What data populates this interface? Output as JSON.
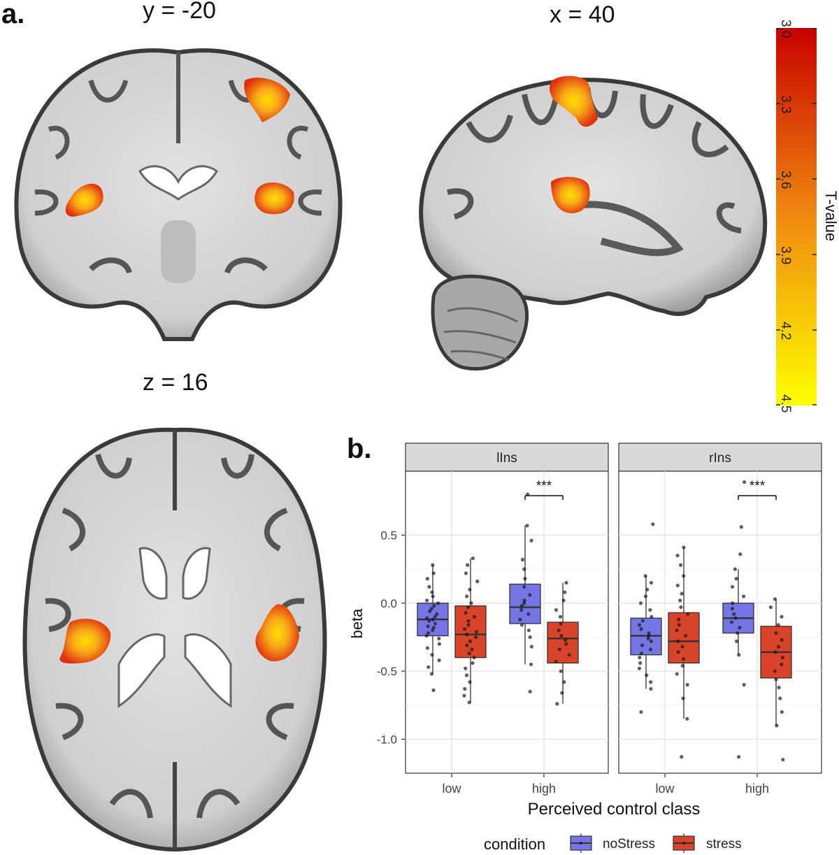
{
  "panel_a": {
    "label": "a.",
    "slices": [
      {
        "label": "y = -20",
        "view": "coronal"
      },
      {
        "label": "x = 40",
        "view": "sagittal"
      },
      {
        "label": "z = 16",
        "view": "axial"
      }
    ],
    "colorbar": {
      "title": "T-value",
      "ticks": [
        "3.0",
        "3.3",
        "3.6",
        "3.9",
        "4.2",
        "4.5"
      ],
      "colors": {
        "low": "#c80000",
        "mid": "#f08a10",
        "high": "#ffff00"
      }
    },
    "colors": {
      "blob_outer": "#e03010",
      "blob_mid": "#f08a10",
      "blob_core": "#ffe000"
    }
  },
  "panel_b": {
    "label": "b.",
    "chart_data": {
      "type": "boxplot",
      "facets": [
        "lIns",
        "rIns"
      ],
      "categories": [
        "low",
        "high"
      ],
      "xlabel": "Perceived control class",
      "ylabel": "beta",
      "yticks": [
        0.5,
        0.0,
        -0.5,
        -1.0
      ],
      "ytick_labels": [
        "0.5",
        "0.0",
        "-0.5",
        "-1.0"
      ],
      "ylim": [
        -1.25,
        0.97
      ],
      "legend": {
        "title": "condition",
        "position": "bottom",
        "entries": [
          "noStress",
          "stress"
        ]
      },
      "series_colors": {
        "noStress": "#7575e6",
        "stress": "#d9432a"
      },
      "significance": [
        {
          "facet": "lIns",
          "category": "high",
          "label": "***",
          "y": 0.79
        },
        {
          "facet": "rIns",
          "category": "high",
          "label": "***",
          "y": 0.79
        }
      ],
      "boxes": [
        {
          "facet": "lIns",
          "category": "low",
          "series": "noStress",
          "q1": -0.24,
          "median": -0.12,
          "q3": 0.0,
          "whisker_low": -0.52,
          "whisker_high": 0.28
        },
        {
          "facet": "lIns",
          "category": "low",
          "series": "stress",
          "q1": -0.4,
          "median": -0.23,
          "q3": -0.02,
          "whisker_low": -0.73,
          "whisker_high": 0.33
        },
        {
          "facet": "lIns",
          "category": "high",
          "series": "noStress",
          "q1": -0.15,
          "median": -0.03,
          "q3": 0.14,
          "whisker_low": -0.45,
          "whisker_high": 0.57
        },
        {
          "facet": "lIns",
          "category": "high",
          "series": "stress",
          "q1": -0.44,
          "median": -0.26,
          "q3": -0.14,
          "whisker_low": -0.74,
          "whisker_high": 0.15
        },
        {
          "facet": "rIns",
          "category": "low",
          "series": "noStress",
          "q1": -0.38,
          "median": -0.24,
          "q3": -0.11,
          "whisker_low": -0.63,
          "whisker_high": 0.2
        },
        {
          "facet": "rIns",
          "category": "low",
          "series": "stress",
          "q1": -0.44,
          "median": -0.28,
          "q3": -0.07,
          "whisker_low": -0.85,
          "whisker_high": 0.41
        },
        {
          "facet": "rIns",
          "category": "high",
          "series": "noStress",
          "q1": -0.22,
          "median": -0.11,
          "q3": 0.0,
          "whisker_low": -0.38,
          "whisker_high": 0.25
        },
        {
          "facet": "rIns",
          "category": "high",
          "series": "stress",
          "q1": -0.55,
          "median": -0.36,
          "q3": -0.17,
          "whisker_low": -0.9,
          "whisker_high": 0.03
        }
      ],
      "points": [
        {
          "facet": "lIns",
          "category": "low",
          "series": "noStress",
          "values": [
            0.28,
            0.22,
            0.18,
            0.12,
            0.08,
            0.05,
            0.02,
            0.0,
            -0.02,
            -0.04,
            -0.06,
            -0.08,
            -0.1,
            -0.11,
            -0.12,
            -0.13,
            -0.15,
            -0.17,
            -0.18,
            -0.2,
            -0.22,
            -0.24,
            -0.26,
            -0.3,
            -0.33,
            -0.38,
            -0.42,
            -0.47,
            -0.52,
            -0.64
          ]
        },
        {
          "facet": "lIns",
          "category": "low",
          "series": "stress",
          "values": [
            0.33,
            0.28,
            0.22,
            0.16,
            0.1,
            0.05,
            0.0,
            -0.03,
            -0.07,
            -0.1,
            -0.13,
            -0.16,
            -0.19,
            -0.21,
            -0.23,
            -0.25,
            -0.28,
            -0.31,
            -0.34,
            -0.37,
            -0.4,
            -0.44,
            -0.48,
            -0.53,
            -0.58,
            -0.63,
            -0.68,
            -0.73
          ]
        },
        {
          "facet": "lIns",
          "category": "high",
          "series": "noStress",
          "values": [
            0.8,
            0.57,
            0.46,
            0.32,
            0.25,
            0.18,
            0.12,
            0.06,
            0.02,
            0.0,
            -0.02,
            -0.05,
            -0.08,
            -0.12,
            -0.16,
            -0.2,
            -0.25,
            -0.32,
            -0.45,
            -0.65
          ]
        },
        {
          "facet": "lIns",
          "category": "high",
          "series": "stress",
          "values": [
            0.15,
            0.08,
            0.02,
            -0.05,
            -0.1,
            -0.15,
            -0.2,
            -0.24,
            -0.27,
            -0.3,
            -0.34,
            -0.38,
            -0.43,
            -0.5,
            -0.58,
            -0.66,
            -0.74
          ]
        },
        {
          "facet": "rIns",
          "category": "low",
          "series": "noStress",
          "values": [
            0.58,
            0.2,
            0.15,
            0.1,
            0.05,
            0.0,
            -0.05,
            -0.1,
            -0.13,
            -0.16,
            -0.19,
            -0.22,
            -0.24,
            -0.26,
            -0.28,
            -0.31,
            -0.34,
            -0.37,
            -0.4,
            -0.44,
            -0.48,
            -0.53,
            -0.58,
            -0.63,
            -0.8
          ]
        },
        {
          "facet": "rIns",
          "category": "low",
          "series": "stress",
          "values": [
            0.41,
            0.35,
            0.28,
            0.2,
            0.13,
            0.07,
            0.02,
            -0.03,
            -0.08,
            -0.12,
            -0.16,
            -0.2,
            -0.24,
            -0.28,
            -0.32,
            -0.36,
            -0.41,
            -0.46,
            -0.52,
            -0.6,
            -0.7,
            -0.85,
            -1.13
          ]
        },
        {
          "facet": "rIns",
          "category": "high",
          "series": "noStress",
          "values": [
            0.89,
            0.56,
            0.36,
            0.25,
            0.18,
            0.12,
            0.05,
            0.0,
            -0.04,
            -0.08,
            -0.11,
            -0.14,
            -0.18,
            -0.22,
            -0.28,
            -0.38,
            -0.6,
            -1.13
          ]
        },
        {
          "facet": "rIns",
          "category": "high",
          "series": "stress",
          "values": [
            0.03,
            -0.03,
            -0.1,
            -0.16,
            -0.22,
            -0.27,
            -0.32,
            -0.36,
            -0.4,
            -0.45,
            -0.5,
            -0.56,
            -0.62,
            -0.7,
            -0.8,
            -0.9,
            -1.15
          ]
        }
      ]
    }
  }
}
